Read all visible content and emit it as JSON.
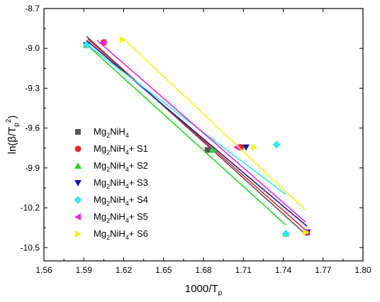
{
  "chart_data": {
    "type": "scatter",
    "xlabel": "1000/T",
    "xlabel_sub": "p",
    "ylabel_parts": [
      "ln(β/T",
      "p",
      "2",
      ")"
    ],
    "xlim": [
      1.56,
      1.8
    ],
    "ylim": [
      -10.6,
      -8.7
    ],
    "xticks": [
      "1.56",
      "1.59",
      "1.62",
      "1.65",
      "1.68",
      "1.71",
      "1.74",
      "1.77",
      "1.80"
    ],
    "yticks": [
      "-8.7",
      "-9.0",
      "-9.3",
      "-9.6",
      "-9.9",
      "-10.2",
      "-10.5"
    ],
    "legend_position": "left-center",
    "series": [
      {
        "name_parts": [
          "Mg",
          "2",
          "NiH",
          "4",
          ""
        ],
        "color": "#555555",
        "marker": "square",
        "points": [
          [
            1.592,
            -8.975
          ],
          [
            1.683,
            -9.765
          ],
          [
            1.758,
            -10.385
          ]
        ],
        "fit": [
          [
            1.592,
            -8.91
          ],
          [
            1.758,
            -10.41
          ]
        ]
      },
      {
        "name_parts": [
          "Mg",
          "2",
          "NiH",
          "4",
          "+ S1"
        ],
        "color": "#e8262a",
        "marker": "circle",
        "points": [
          [
            1.605,
            -8.955
          ],
          [
            1.708,
            -9.745
          ],
          [
            1.757,
            -10.385
          ]
        ],
        "fit": [
          [
            1.593,
            -8.93
          ],
          [
            1.757,
            -10.37
          ]
        ]
      },
      {
        "name_parts": [
          "Mg",
          "2",
          "NiH",
          "4",
          "+ S2"
        ],
        "color": "#28d428",
        "marker": "triangle-up",
        "points": [
          [
            1.593,
            -8.975
          ],
          [
            1.687,
            -9.765
          ],
          [
            1.742,
            -10.395
          ]
        ],
        "fit": [
          [
            1.593,
            -8.98
          ],
          [
            1.742,
            -10.33
          ]
        ]
      },
      {
        "name_parts": [
          "Mg",
          "2",
          "NiH",
          "4",
          "+ S3"
        ],
        "color": "#1a1a9e",
        "marker": "triangle-down",
        "points": [
          [
            1.592,
            -8.975
          ],
          [
            1.712,
            -9.745
          ],
          [
            1.758,
            -10.385
          ]
        ],
        "fit": [
          [
            1.592,
            -8.94
          ],
          [
            1.758,
            -10.34
          ]
        ]
      },
      {
        "name_parts": [
          "Mg",
          "2",
          "NiH",
          "4",
          "+ S4"
        ],
        "color": "#33e6e6",
        "marker": "diamond",
        "points": [
          [
            1.592,
            -8.975
          ],
          [
            1.735,
            -9.725
          ],
          [
            1.742,
            -10.395
          ]
        ],
        "fit": [
          [
            1.592,
            -8.97
          ],
          [
            1.742,
            -10.1
          ]
        ]
      },
      {
        "name_parts": [
          "Mg",
          "2",
          "NiH",
          "4",
          "+ S5"
        ],
        "color": "#e82ad6",
        "marker": "triangle-left",
        "points": [
          [
            1.605,
            -8.955
          ],
          [
            1.705,
            -9.745
          ],
          [
            1.757,
            -10.385
          ]
        ],
        "fit": [
          [
            1.6,
            -8.94
          ],
          [
            1.757,
            -10.31
          ]
        ]
      },
      {
        "name_parts": [
          "Mg",
          "2",
          "NiH",
          "4",
          "+ S6"
        ],
        "color": "#f2f21e",
        "marker": "triangle-right",
        "points": [
          [
            1.619,
            -8.935
          ],
          [
            1.718,
            -9.745
          ],
          [
            1.757,
            -10.385
          ]
        ],
        "fit": [
          [
            1.619,
            -8.92
          ],
          [
            1.757,
            -10.22
          ]
        ]
      }
    ]
  }
}
